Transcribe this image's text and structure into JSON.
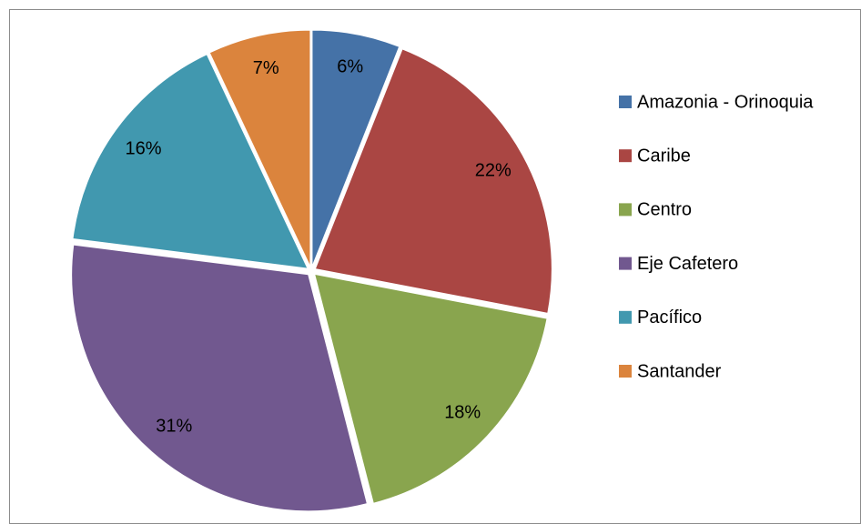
{
  "chart_data": {
    "type": "pie",
    "categories": [
      "Amazonia - Orinoquia",
      "Caribe",
      "Centro",
      "Eje Cafetero",
      "Pacífico",
      "Santander"
    ],
    "values": [
      6,
      22,
      18,
      31,
      16,
      7
    ],
    "value_labels": [
      "6%",
      "22%",
      "18%",
      "31%",
      "16%",
      "7%"
    ],
    "colors": [
      "#4572a7",
      "#aa4643",
      "#89a54e",
      "#71588f",
      "#4198af",
      "#db843d"
    ],
    "legend": "right"
  }
}
